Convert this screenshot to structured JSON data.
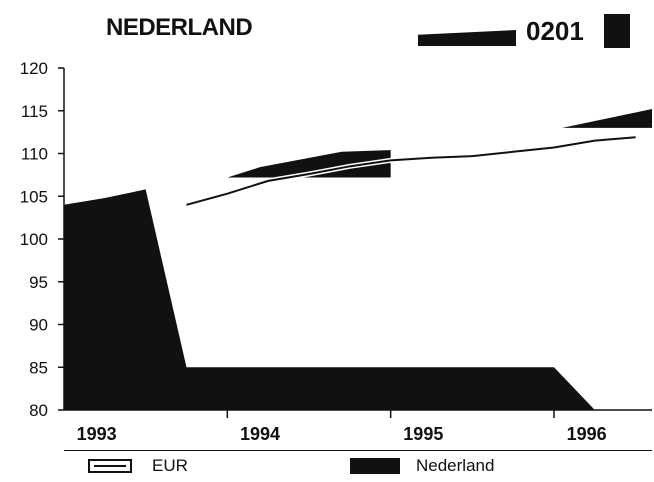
{
  "header": {
    "title": "NEDERLAND",
    "code": "0201"
  },
  "chart_data": {
    "type": "area",
    "title": "NEDERLAND",
    "xlabel": "",
    "ylabel": "",
    "ylim": [
      80,
      120
    ],
    "yticks": [
      "120",
      "115",
      "110",
      "105",
      "100",
      "95",
      "90",
      "85",
      "80"
    ],
    "ytick_values": [
      120,
      115,
      110,
      105,
      100,
      95,
      90,
      85,
      80
    ],
    "categories": [
      "1993",
      "1994",
      "1995",
      "1996"
    ],
    "x": [
      1993.0,
      1993.25,
      1993.5,
      1993.75,
      1994.0,
      1994.25,
      1994.5,
      1994.75,
      1995.0,
      1995.25,
      1995.5,
      1995.75,
      1996.0,
      1996.25,
      1996.5
    ],
    "series": [
      {
        "name": "EUR",
        "style": "line",
        "values": [
          null,
          null,
          null,
          104.0,
          105.3,
          106.8,
          107.6,
          108.5,
          109.2,
          109.5,
          109.7,
          110.2,
          110.7,
          111.5,
          111.9
        ]
      },
      {
        "name": "Nederland",
        "style": "area",
        "values": [
          104.0,
          104.8,
          105.8,
          85.0,
          85.0,
          85.0,
          85.0,
          85.0,
          85.0,
          85.0,
          85.0,
          85.0,
          85.0,
          80.0,
          80.0
        ]
      }
    ],
    "legend_position": "bottom",
    "grid": false,
    "colors": {
      "area": "#111111",
      "line": "#111111",
      "background": "#ffffff"
    }
  },
  "legend": {
    "eur_label": "EUR",
    "nederland_label": "Nederland"
  }
}
